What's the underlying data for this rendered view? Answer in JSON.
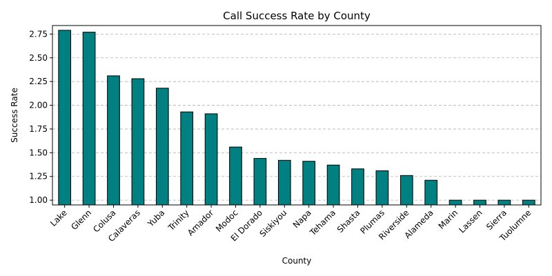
{
  "chart_data": {
    "type": "bar",
    "title": "Call Success Rate by County",
    "xlabel": "County",
    "ylabel": "Success Rate",
    "categories": [
      "Lake",
      "Glenn",
      "Colusa",
      "Calaveras",
      "Yuba",
      "Trinity",
      "Amador",
      "Modoc",
      "El Dorado",
      "Siskiyou",
      "Napa",
      "Tehama",
      "Shasta",
      "Plumas",
      "Riverside",
      "Alameda",
      "Marin",
      "Lassen",
      "Sierra",
      "Tuolumne"
    ],
    "values": [
      2.79,
      2.77,
      2.31,
      2.28,
      2.18,
      1.93,
      1.91,
      1.56,
      1.44,
      1.42,
      1.41,
      1.37,
      1.33,
      1.31,
      1.26,
      1.21,
      1.0,
      1.0,
      1.0,
      1.0
    ],
    "ylim": [
      0.95,
      2.84
    ],
    "yticks": [
      "1.00",
      "1.25",
      "1.50",
      "1.75",
      "2.00",
      "2.25",
      "2.50",
      "2.75"
    ],
    "grid": "y",
    "bar_color": "#008080"
  }
}
